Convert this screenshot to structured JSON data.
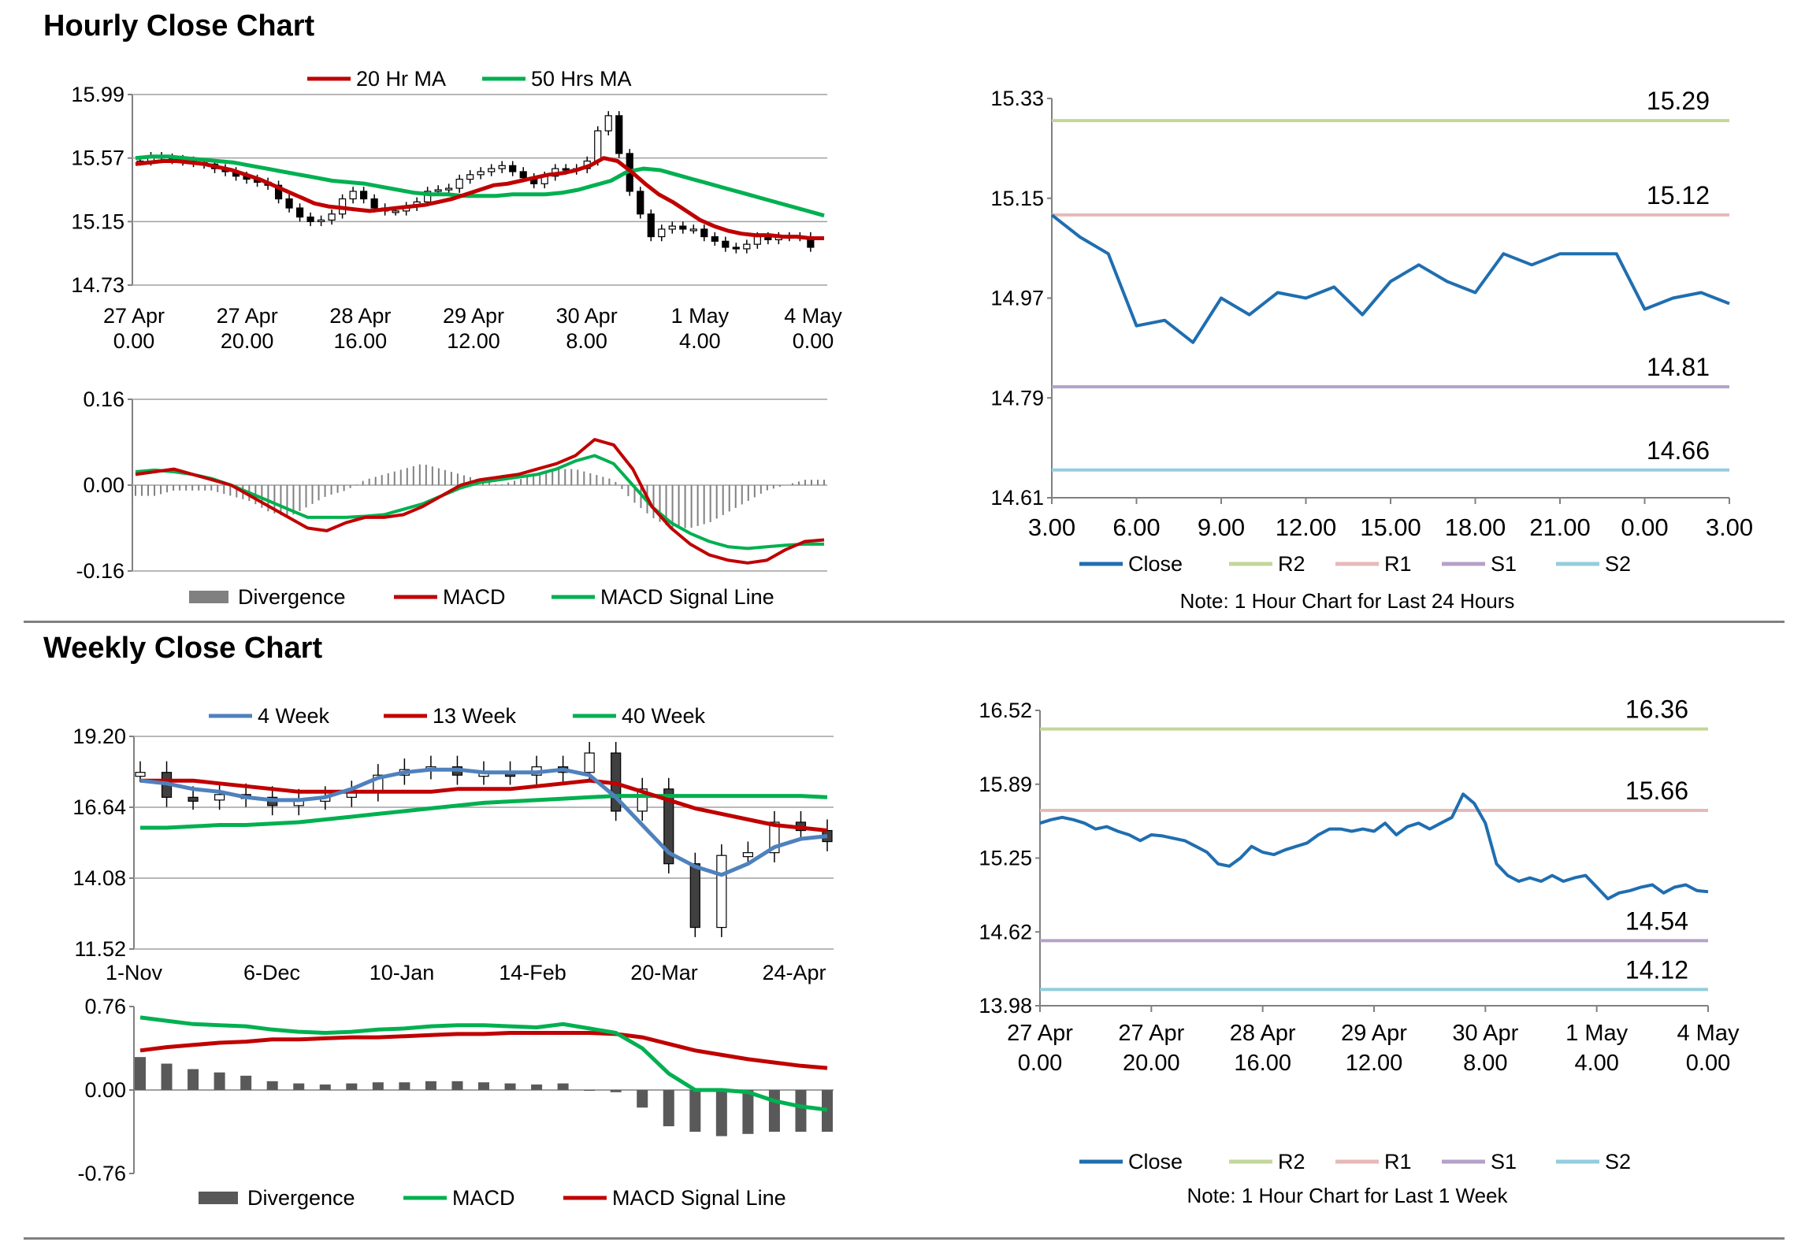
{
  "sections": {
    "hourly_title": "Hourly Close Chart",
    "weekly_title": "Weekly Close Chart"
  },
  "chart_data": [
    {
      "id": "hourly-price",
      "type": "candlestick",
      "legend": [
        "20 Hr MA",
        "50 Hrs MA"
      ],
      "colors": {
        "ma1": "#C00000",
        "ma2": "#00B050",
        "candle": "#000000"
      },
      "y_ticks": [
        "15.99",
        "15.57",
        "15.15",
        "14.73"
      ],
      "ylim": [
        14.73,
        15.99
      ],
      "x_ticks": [
        [
          "27 Apr",
          "0.00"
        ],
        [
          "27 Apr",
          "20.00"
        ],
        [
          "28 Apr",
          "16.00"
        ],
        [
          "29 Apr",
          "12.00"
        ],
        [
          "30 Apr",
          "8.00"
        ],
        [
          "1 May",
          "4.00"
        ],
        [
          "4 May",
          "0.00"
        ]
      ],
      "ohlc_close": [
        15.55,
        15.58,
        15.57,
        15.56,
        15.55,
        15.54,
        15.53,
        15.5,
        15.48,
        15.45,
        15.43,
        15.41,
        15.39,
        15.3,
        15.24,
        15.18,
        15.15,
        15.16,
        15.2,
        15.3,
        15.35,
        15.3,
        15.24,
        15.22,
        15.22,
        15.25,
        15.28,
        15.35,
        15.36,
        15.37,
        15.43,
        15.46,
        15.48,
        15.5,
        15.52,
        15.48,
        15.44,
        15.4,
        15.45,
        15.5,
        15.49,
        15.5,
        15.55,
        15.75,
        15.85,
        15.6,
        15.35,
        15.2,
        15.05,
        15.1,
        15.12,
        15.1,
        15.1,
        15.05,
        15.02,
        14.98,
        14.97,
        15.0,
        15.05,
        15.03,
        15.05,
        15.05,
        15.05,
        14.98
      ],
      "ma20": [
        15.53,
        15.54,
        15.55,
        15.55,
        15.54,
        15.53,
        15.51,
        15.49,
        15.46,
        15.43,
        15.39,
        15.35,
        15.31,
        15.27,
        15.25,
        15.24,
        15.23,
        15.22,
        15.23,
        15.24,
        15.25,
        15.26,
        15.28,
        15.3,
        15.33,
        15.36,
        15.39,
        15.4,
        15.42,
        15.44,
        15.46,
        15.47,
        15.49,
        15.52,
        15.57,
        15.55,
        15.48,
        15.4,
        15.33,
        15.28,
        15.22,
        15.16,
        15.12,
        15.09,
        15.07,
        15.06,
        15.06,
        15.05,
        15.05,
        15.04,
        15.04
      ],
      "ma50": [
        15.57,
        15.58,
        15.58,
        15.57,
        15.56,
        15.55,
        15.54,
        15.52,
        15.5,
        15.48,
        15.46,
        15.44,
        15.42,
        15.41,
        15.4,
        15.38,
        15.36,
        15.34,
        15.33,
        15.33,
        15.32,
        15.32,
        15.32,
        15.33,
        15.33,
        15.33,
        15.34,
        15.36,
        15.39,
        15.42,
        15.48,
        15.5,
        15.49,
        15.46,
        15.43,
        15.4,
        15.37,
        15.34,
        15.31,
        15.28,
        15.25,
        15.22,
        15.19
      ],
      "xlim_points": 64
    },
    {
      "id": "hourly-macd",
      "type": "line",
      "legend": [
        "Divergence",
        "MACD",
        "MACD Signal Line"
      ],
      "colors": {
        "divergence": "#808080",
        "macd": "#C00000",
        "signal": "#00B050"
      },
      "y_ticks": [
        "0.16",
        "0.00",
        "-0.16"
      ],
      "ylim": [
        -0.16,
        0.16
      ],
      "macd": [
        0.02,
        0.025,
        0.03,
        0.02,
        0.01,
        0.0,
        -0.02,
        -0.04,
        -0.06,
        -0.08,
        -0.085,
        -0.07,
        -0.06,
        -0.06,
        -0.055,
        -0.04,
        -0.02,
        0.0,
        0.01,
        0.015,
        0.02,
        0.03,
        0.04,
        0.055,
        0.085,
        0.075,
        0.03,
        -0.04,
        -0.08,
        -0.11,
        -0.13,
        -0.14,
        -0.145,
        -0.14,
        -0.12,
        -0.105,
        -0.102
      ],
      "signal": [
        0.025,
        0.028,
        0.025,
        0.02,
        0.012,
        0.0,
        -0.015,
        -0.03,
        -0.045,
        -0.06,
        -0.06,
        -0.06,
        -0.058,
        -0.055,
        -0.045,
        -0.035,
        -0.02,
        -0.005,
        0.005,
        0.01,
        0.015,
        0.02,
        0.03,
        0.045,
        0.055,
        0.04,
        0.0,
        -0.04,
        -0.07,
        -0.09,
        -0.105,
        -0.115,
        -0.118,
        -0.115,
        -0.112,
        -0.11,
        -0.11
      ],
      "divergence": [
        -0.02,
        -0.02,
        -0.01,
        -0.01,
        -0.01,
        -0.02,
        -0.03,
        -0.05,
        -0.06,
        -0.04,
        -0.02,
        -0.01,
        0.01,
        0.02,
        0.03,
        0.04,
        0.03,
        0.02,
        0.01,
        0.0,
        0.01,
        0.02,
        0.03,
        0.03,
        0.02,
        0.01,
        -0.03,
        -0.06,
        -0.08,
        -0.08,
        -0.07,
        -0.05,
        -0.03,
        -0.01,
        0.0,
        0.01,
        0.01
      ]
    },
    {
      "id": "hourly-24h",
      "type": "line",
      "legend": [
        "Close",
        "R2",
        "R1",
        "S1",
        "S2"
      ],
      "colors": {
        "close": "#1F6EB0",
        "r2": "#C3D69B",
        "r1": "#E6B9B8",
        "s1": "#B3A2C7",
        "s2": "#93CDDD"
      },
      "y_ticks": [
        "15.33",
        "15.15",
        "14.97",
        "14.79",
        "14.61"
      ],
      "ylim": [
        14.61,
        15.33
      ],
      "x_ticks": [
        "3.00",
        "6.00",
        "9.00",
        "12.00",
        "15.00",
        "18.00",
        "21.00",
        "0.00",
        "3.00"
      ],
      "levels": {
        "R2": "15.29",
        "R1": "15.12",
        "S1": "14.81",
        "S2": "14.66"
      },
      "close": [
        15.12,
        15.08,
        15.05,
        14.92,
        14.93,
        14.89,
        14.97,
        14.94,
        14.98,
        14.97,
        14.99,
        14.94,
        15.0,
        15.03,
        15.0,
        14.98,
        15.05,
        15.03,
        15.05,
        15.05,
        15.05,
        14.95,
        14.97,
        14.98,
        14.96
      ],
      "note": "Note: 1 Hour Chart for Last 24 Hours"
    },
    {
      "id": "weekly-price",
      "type": "candlestick",
      "legend": [
        "4 Week",
        "13 Week",
        "40 Week"
      ],
      "colors": {
        "ma4": "#4F81BD",
        "ma13": "#C00000",
        "ma40": "#00B050"
      },
      "y_ticks": [
        "19.20",
        "16.64",
        "14.08",
        "11.52"
      ],
      "ylim": [
        11.52,
        19.2
      ],
      "x_ticks": [
        "1-Nov",
        "6-Dec",
        "10-Jan",
        "14-Feb",
        "20-Mar",
        "24-Apr"
      ],
      "ma4": [
        17.6,
        17.5,
        17.3,
        17.2,
        17.0,
        16.9,
        16.9,
        17.0,
        17.3,
        17.7,
        17.9,
        18.0,
        18.0,
        17.9,
        17.9,
        17.9,
        18.0,
        17.8,
        17.0,
        16.0,
        15.0,
        14.5,
        14.2,
        14.6,
        15.2,
        15.5,
        15.6
      ],
      "ma13": [
        17.6,
        17.6,
        17.6,
        17.5,
        17.4,
        17.3,
        17.2,
        17.2,
        17.2,
        17.2,
        17.2,
        17.2,
        17.3,
        17.3,
        17.3,
        17.4,
        17.5,
        17.6,
        17.5,
        17.2,
        16.9,
        16.6,
        16.4,
        16.2,
        16.0,
        15.9,
        15.8
      ],
      "ma40": [
        15.9,
        15.9,
        15.95,
        16.0,
        16.0,
        16.05,
        16.1,
        16.2,
        16.3,
        16.4,
        16.5,
        16.6,
        16.7,
        16.8,
        16.85,
        16.9,
        16.95,
        17.0,
        17.05,
        17.05,
        17.05,
        17.05,
        17.05,
        17.05,
        17.05,
        17.05,
        17.0
      ],
      "close": [
        17.9,
        17.0,
        16.9,
        17.1,
        17.0,
        16.7,
        16.9,
        17.0,
        17.2,
        17.8,
        18.0,
        18.1,
        17.8,
        17.9,
        17.8,
        18.1,
        17.9,
        18.6,
        16.5,
        17.3,
        14.6,
        12.3,
        14.9,
        15.0,
        16.1,
        15.8,
        15.4
      ]
    },
    {
      "id": "weekly-macd",
      "type": "bar",
      "legend": [
        "Divergence",
        "MACD",
        "MACD Signal Line"
      ],
      "colors": {
        "divergence": "#595959",
        "macd": "#00B050",
        "signal": "#C00000"
      },
      "y_ticks": [
        "0.76",
        "0.00",
        "-0.76"
      ],
      "ylim": [
        -0.76,
        0.76
      ],
      "macd": [
        0.66,
        0.63,
        0.6,
        0.59,
        0.58,
        0.55,
        0.53,
        0.52,
        0.53,
        0.55,
        0.56,
        0.58,
        0.59,
        0.59,
        0.58,
        0.57,
        0.6,
        0.56,
        0.52,
        0.38,
        0.15,
        0.0,
        0.0,
        -0.02,
        -0.1,
        -0.15,
        -0.18
      ],
      "signal": [
        0.36,
        0.39,
        0.41,
        0.43,
        0.44,
        0.46,
        0.46,
        0.47,
        0.48,
        0.48,
        0.49,
        0.5,
        0.51,
        0.51,
        0.52,
        0.52,
        0.52,
        0.52,
        0.51,
        0.48,
        0.42,
        0.36,
        0.32,
        0.28,
        0.25,
        0.22,
        0.2
      ],
      "divergence": [
        0.3,
        0.24,
        0.19,
        0.16,
        0.13,
        0.08,
        0.06,
        0.05,
        0.06,
        0.07,
        0.07,
        0.08,
        0.08,
        0.07,
        0.06,
        0.05,
        0.06,
        0.0,
        -0.02,
        -0.16,
        -0.33,
        -0.38,
        -0.42,
        -0.4,
        -0.38,
        -0.38,
        -0.38
      ]
    },
    {
      "id": "weekly-1w",
      "type": "line",
      "legend": [
        "Close",
        "R2",
        "R1",
        "S1",
        "S2"
      ],
      "colors": {
        "close": "#1F6EB0",
        "r2": "#C3D69B",
        "r1": "#E6B9B8",
        "s1": "#B3A2C7",
        "s2": "#93CDDD"
      },
      "y_ticks": [
        "16.52",
        "15.89",
        "15.25",
        "14.62",
        "13.98"
      ],
      "ylim": [
        13.98,
        16.52
      ],
      "x_ticks": [
        [
          "27 Apr",
          "0.00"
        ],
        [
          "27 Apr",
          "20.00"
        ],
        [
          "28 Apr",
          "16.00"
        ],
        [
          "29 Apr",
          "12.00"
        ],
        [
          "30 Apr",
          "8.00"
        ],
        [
          "1 May",
          "4.00"
        ],
        [
          "4 May",
          "0.00"
        ]
      ],
      "levels": {
        "R2": "16.36",
        "R1": "15.66",
        "S1": "14.54",
        "S2": "14.12"
      },
      "close": [
        15.55,
        15.58,
        15.6,
        15.58,
        15.55,
        15.5,
        15.52,
        15.48,
        15.45,
        15.4,
        15.45,
        15.44,
        15.42,
        15.4,
        15.35,
        15.3,
        15.2,
        15.18,
        15.25,
        15.35,
        15.3,
        15.28,
        15.32,
        15.35,
        15.38,
        15.45,
        15.5,
        15.5,
        15.48,
        15.5,
        15.48,
        15.55,
        15.45,
        15.52,
        15.55,
        15.5,
        15.55,
        15.6,
        15.8,
        15.72,
        15.55,
        15.2,
        15.1,
        15.05,
        15.08,
        15.05,
        15.1,
        15.05,
        15.08,
        15.1,
        15.0,
        14.9,
        14.95,
        14.97,
        15.0,
        15.02,
        14.95,
        15.0,
        15.02,
        14.97,
        14.96
      ],
      "note": "Note: 1 Hour Chart for Last 1 Week"
    }
  ]
}
